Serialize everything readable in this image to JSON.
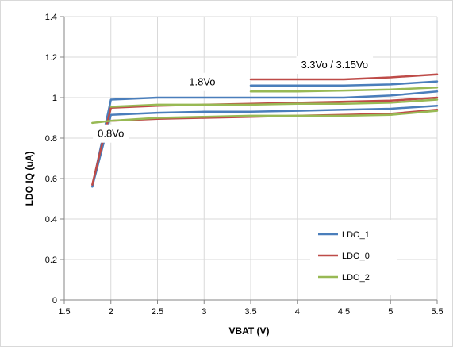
{
  "chart_data": {
    "type": "line",
    "xlabel": "VBAT (V)",
    "ylabel": "LDO IQ (uA)",
    "xlim": [
      1.5,
      5.5
    ],
    "ylim": [
      0,
      1.4
    ],
    "x_ticks": [
      1.5,
      2,
      2.5,
      3,
      3.5,
      4,
      4.5,
      5,
      5.5
    ],
    "y_ticks": [
      0,
      0.2,
      0.4,
      0.6,
      0.8,
      1,
      1.2,
      1.4
    ],
    "x_tick_labels": [
      "1.5",
      "2",
      "2.5",
      "3",
      "3.5",
      "4",
      "4.5",
      "5",
      "5.5"
    ],
    "y_tick_labels": [
      "0",
      "0.2",
      "0.4",
      "0.6",
      "0.8",
      "1",
      "1.2",
      "1.4"
    ],
    "grid": true,
    "legend_position": "bottom-right",
    "series": [
      {
        "name": "LDO_1",
        "color": "#4a7ebb",
        "lines": [
          {
            "x": [
              1.8,
              2,
              2.5,
              3,
              3.5,
              4,
              4.5,
              5,
              5.5
            ],
            "y": [
              0.56,
              0.99,
              1.0,
              1.0,
              1.0,
              1.0,
              1.0,
              1.01,
              1.03
            ]
          },
          {
            "x": [
              1.8,
              2,
              2.5,
              3,
              3.5,
              4,
              4.5,
              5,
              5.5
            ],
            "y": [
              0.56,
              0.915,
              0.925,
              0.93,
              0.93,
              0.935,
              0.94,
              0.945,
              0.96
            ]
          },
          {
            "x": [
              3.5,
              4,
              4.5,
              5,
              5.5
            ],
            "y": [
              1.06,
              1.06,
              1.06,
              1.065,
              1.08
            ]
          }
        ]
      },
      {
        "name": "LDO_0",
        "color": "#be4b48",
        "lines": [
          {
            "x": [
              1.8,
              2,
              2.5,
              3,
              3.5,
              4,
              4.5,
              5,
              5.5
            ],
            "y": [
              0.57,
              0.95,
              0.96,
              0.965,
              0.97,
              0.975,
              0.98,
              0.985,
              1.0
            ]
          },
          {
            "x": [
              2,
              2.5,
              3,
              3.5,
              4,
              4.5,
              5,
              5.5
            ],
            "y": [
              0.885,
              0.895,
              0.9,
              0.905,
              0.91,
              0.915,
              0.92,
              0.94
            ]
          },
          {
            "x": [
              3.5,
              4,
              4.5,
              5,
              5.5
            ],
            "y": [
              1.09,
              1.09,
              1.09,
              1.1,
              1.115
            ]
          }
        ]
      },
      {
        "name": "LDO_2",
        "color": "#98b954",
        "lines": [
          {
            "x": [
              1.8,
              2,
              2.5,
              3,
              3.5,
              4,
              4.5,
              5,
              5.5
            ],
            "y": [
              0.875,
              0.885,
              0.9,
              0.905,
              0.91,
              0.91,
              0.91,
              0.915,
              0.935
            ]
          },
          {
            "x": [
              2,
              2.5,
              3,
              3.5,
              4,
              4.5,
              5,
              5.5
            ],
            "y": [
              0.955,
              0.965,
              0.965,
              0.965,
              0.97,
              0.97,
              0.975,
              0.99
            ]
          },
          {
            "x": [
              3.5,
              4,
              4.5,
              5,
              5.5
            ],
            "y": [
              1.03,
              1.03,
              1.035,
              1.04,
              1.05
            ]
          }
        ]
      }
    ],
    "annotations": [
      {
        "text": "1.8Vo",
        "x": 2.98,
        "y": 1.06
      },
      {
        "text": "3.3Vo / 3.15Vo",
        "x": 4.4,
        "y": 1.145
      },
      {
        "text": "0.8Vo",
        "x": 2.0,
        "y": 0.805
      }
    ]
  }
}
